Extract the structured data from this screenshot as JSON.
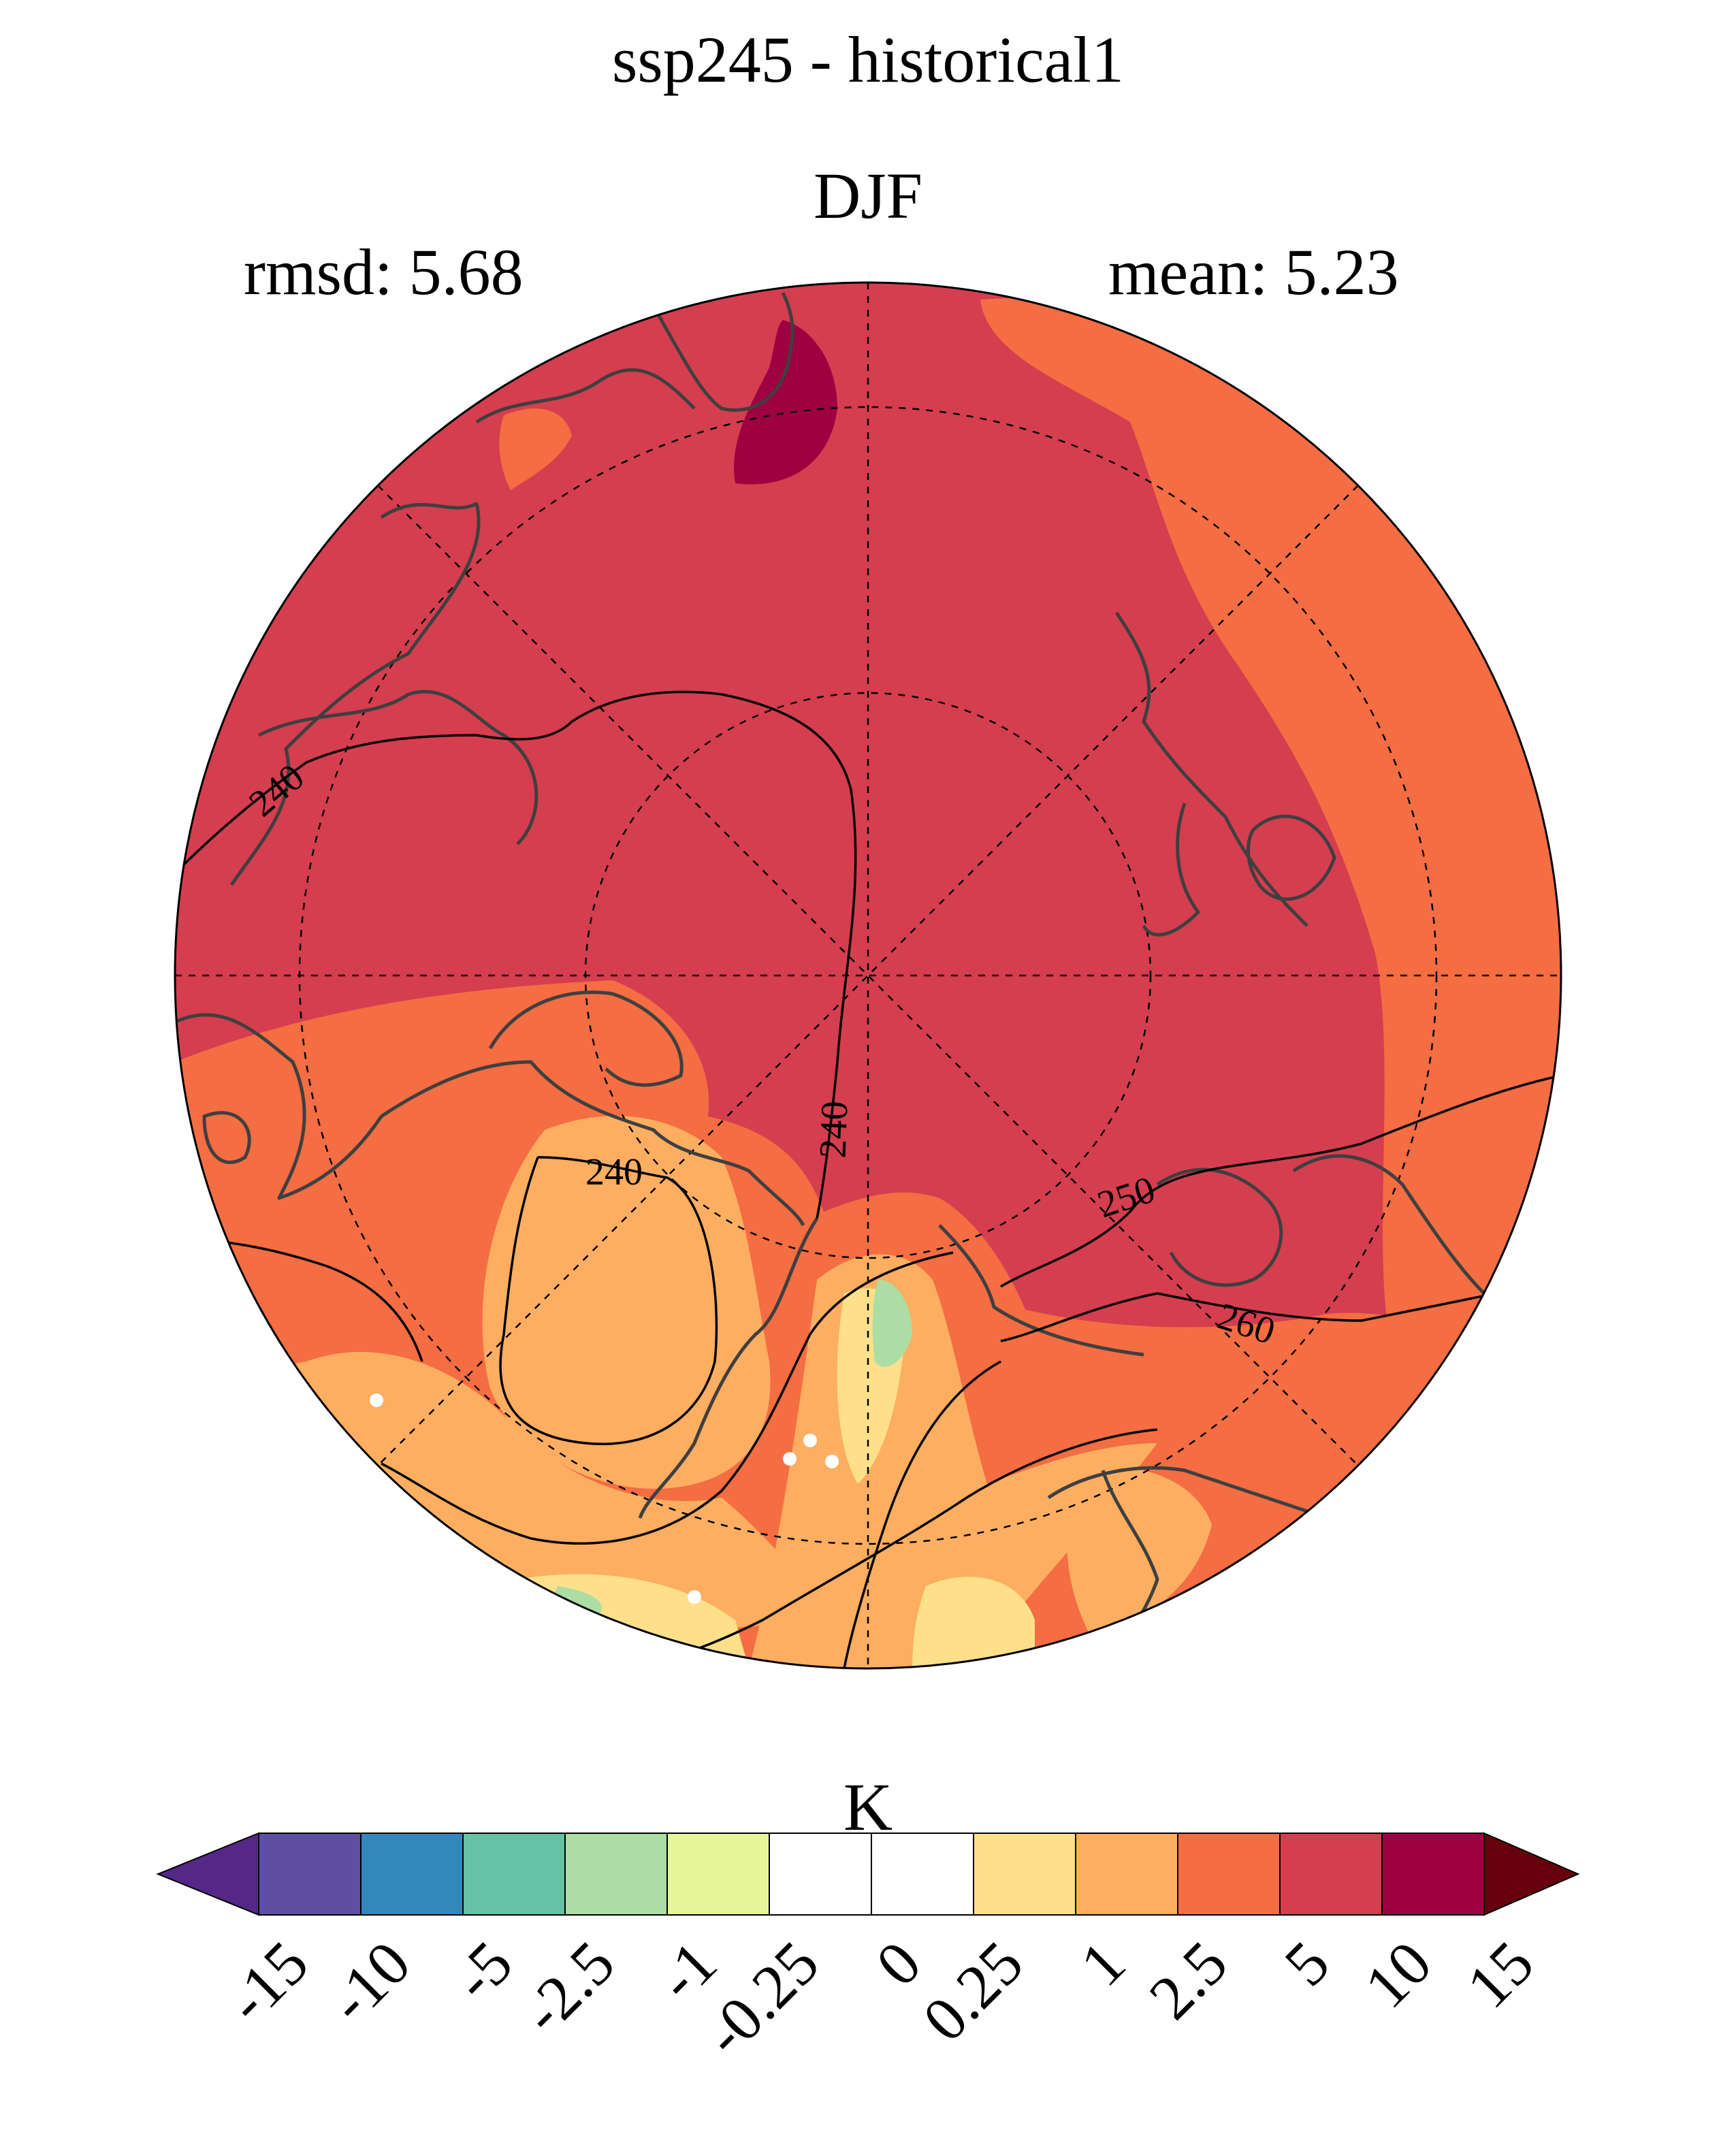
{
  "title": "ssp245 - historical1",
  "season": "DJF",
  "rmsd_text": "rmsd: 5.68",
  "mean_text": "mean: 5.23",
  "colorbar": {
    "unit": "K",
    "ticks": [
      "-15",
      "-10",
      "-5",
      "-2.5",
      "-1",
      "-0.25",
      "0",
      "0.25",
      "1",
      "2.5",
      "5",
      "10",
      "15"
    ],
    "colors": [
      "#5e4fa2",
      "#3288bd",
      "#66c2a5",
      "#abdda4",
      "#e6f598",
      "#ffffff",
      "#ffffff",
      "#fee08b",
      "#fdae61",
      "#f46d43",
      "#d53e4f",
      "#9e0142"
    ],
    "under_color": "#542788",
    "over_color": "#67000d"
  },
  "map": {
    "projection": "north polar stereographic",
    "background_color": "#d53e4f",
    "contour_labels": [
      "240",
      "240",
      "240",
      "250",
      "260"
    ]
  }
}
